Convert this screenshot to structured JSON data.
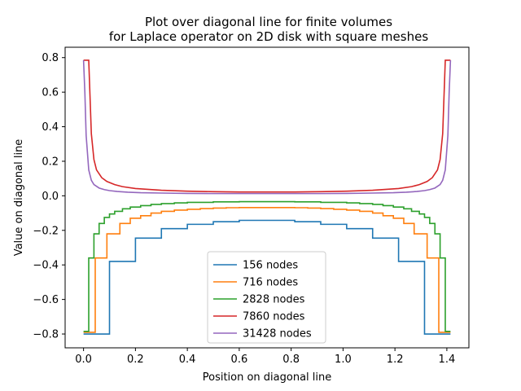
{
  "chart_data": {
    "type": "line",
    "title": [
      "Plot over diagonal line for finite volumes",
      "for Laplace operator on 2D disk with square meshes"
    ],
    "xlabel": "Position on diagonal line",
    "ylabel": "Value on diagonal line",
    "xlim": [
      -0.071,
      1.485
    ],
    "ylim": [
      -0.88,
      0.86
    ],
    "xticks": [
      0.0,
      0.2,
      0.4,
      0.6,
      0.8,
      1.0,
      1.2,
      1.4
    ],
    "xtick_labels": [
      "0.0",
      "0.2",
      "0.4",
      "0.6",
      "0.8",
      "1.0",
      "1.2",
      "1.4"
    ],
    "yticks": [
      -0.8,
      -0.6,
      -0.4,
      -0.2,
      0.0,
      0.2,
      0.4,
      0.6,
      0.8
    ],
    "ytick_labels": [
      "−0.8",
      "−0.6",
      "−0.4",
      "−0.2",
      "0.0",
      "0.2",
      "0.4",
      "0.6",
      "0.8"
    ],
    "grid": false,
    "legend_position": "lower-center",
    "series": [
      {
        "name": "156 nodes",
        "color": "#1f77b4",
        "x": [
          0,
          0.1,
          0.1,
          0.2,
          0.2,
          0.3,
          0.3,
          0.4,
          0.4,
          0.5,
          0.5,
          0.6,
          0.6,
          0.707,
          0.814,
          0.814,
          0.914,
          0.914,
          1.014,
          1.014,
          1.114,
          1.114,
          1.214,
          1.214,
          1.314,
          1.314,
          1.414
        ],
        "y": [
          -0.8,
          -0.8,
          -0.38,
          -0.38,
          -0.245,
          -0.245,
          -0.19,
          -0.19,
          -0.165,
          -0.165,
          -0.15,
          -0.15,
          -0.142,
          -0.142,
          -0.142,
          -0.15,
          -0.15,
          -0.165,
          -0.165,
          -0.19,
          -0.19,
          -0.245,
          -0.245,
          -0.38,
          -0.38,
          -0.8,
          -0.8
        ]
      },
      {
        "name": "716 nodes",
        "color": "#ff7f0e",
        "x": [
          0,
          0.045,
          0.045,
          0.09,
          0.09,
          0.14,
          0.14,
          0.18,
          0.18,
          0.22,
          0.22,
          0.26,
          0.26,
          0.3,
          0.3,
          0.35,
          0.35,
          0.4,
          0.4,
          0.45,
          0.45,
          0.5,
          0.5,
          0.55,
          0.55,
          0.6,
          0.6,
          0.707,
          0.814,
          0.814,
          0.864,
          0.864,
          0.914,
          0.914,
          0.964,
          0.964,
          1.014,
          1.014,
          1.064,
          1.064,
          1.114,
          1.114,
          1.154,
          1.154,
          1.194,
          1.194,
          1.234,
          1.234,
          1.274,
          1.274,
          1.324,
          1.324,
          1.369,
          1.369,
          1.414
        ],
        "y": [
          -0.79,
          -0.79,
          -0.36,
          -0.36,
          -0.22,
          -0.22,
          -0.16,
          -0.16,
          -0.13,
          -0.13,
          -0.115,
          -0.115,
          -0.1,
          -0.1,
          -0.09,
          -0.09,
          -0.083,
          -0.083,
          -0.078,
          -0.078,
          -0.074,
          -0.074,
          -0.071,
          -0.071,
          -0.069,
          -0.069,
          -0.068,
          -0.068,
          -0.068,
          -0.069,
          -0.069,
          -0.071,
          -0.071,
          -0.074,
          -0.074,
          -0.078,
          -0.078,
          -0.083,
          -0.083,
          -0.09,
          -0.09,
          -0.1,
          -0.1,
          -0.115,
          -0.115,
          -0.13,
          -0.13,
          -0.16,
          -0.16,
          -0.22,
          -0.22,
          -0.36,
          -0.36,
          -0.79,
          -0.79
        ]
      },
      {
        "name": "2828 nodes",
        "color": "#2ca02c",
        "x": [
          0,
          0.02,
          0.02,
          0.04,
          0.04,
          0.06,
          0.06,
          0.08,
          0.08,
          0.1,
          0.1,
          0.12,
          0.12,
          0.15,
          0.15,
          0.18,
          0.18,
          0.22,
          0.22,
          0.26,
          0.26,
          0.3,
          0.3,
          0.35,
          0.35,
          0.4,
          0.4,
          0.5,
          0.5,
          0.6,
          0.6,
          0.707,
          0.814,
          0.814,
          0.914,
          0.914,
          1.014,
          1.014,
          1.064,
          1.064,
          1.114,
          1.114,
          1.154,
          1.154,
          1.194,
          1.194,
          1.234,
          1.234,
          1.264,
          1.264,
          1.294,
          1.294,
          1.314,
          1.314,
          1.334,
          1.334,
          1.354,
          1.354,
          1.374,
          1.374,
          1.394,
          1.394,
          1.414
        ],
        "y": [
          -0.785,
          -0.785,
          -0.36,
          -0.36,
          -0.22,
          -0.22,
          -0.16,
          -0.16,
          -0.125,
          -0.125,
          -0.105,
          -0.105,
          -0.09,
          -0.09,
          -0.075,
          -0.075,
          -0.065,
          -0.065,
          -0.057,
          -0.057,
          -0.05,
          -0.05,
          -0.045,
          -0.045,
          -0.041,
          -0.041,
          -0.038,
          -0.038,
          -0.035,
          -0.035,
          -0.034,
          -0.034,
          -0.034,
          -0.035,
          -0.035,
          -0.038,
          -0.038,
          -0.041,
          -0.041,
          -0.045,
          -0.045,
          -0.05,
          -0.05,
          -0.057,
          -0.057,
          -0.065,
          -0.065,
          -0.075,
          -0.075,
          -0.09,
          -0.09,
          -0.105,
          -0.105,
          -0.125,
          -0.125,
          -0.16,
          -0.16,
          -0.22,
          -0.22,
          -0.36,
          -0.36,
          -0.785,
          -0.785
        ]
      },
      {
        "name": "7860 nodes",
        "color": "#d62728",
        "x": [
          0,
          0.01,
          0.02,
          0.03,
          0.04,
          0.05,
          0.07,
          0.09,
          0.12,
          0.15,
          0.2,
          0.3,
          0.4,
          0.5,
          0.6,
          0.707,
          0.814,
          0.914,
          1.014,
          1.114,
          1.214,
          1.264,
          1.294,
          1.324,
          1.344,
          1.364,
          1.374,
          1.384,
          1.394,
          1.404,
          1.414
        ],
        "y": [
          0.785,
          0.785,
          0.785,
          0.36,
          0.21,
          0.15,
          0.105,
          0.083,
          0.065,
          0.053,
          0.042,
          0.032,
          0.027,
          0.024,
          0.022,
          0.022,
          0.022,
          0.024,
          0.027,
          0.032,
          0.042,
          0.053,
          0.065,
          0.083,
          0.105,
          0.15,
          0.21,
          0.36,
          0.785,
          0.785,
          0.785
        ]
      },
      {
        "name": "31428 nodes",
        "color": "#9467bd",
        "x": [
          0,
          0.005,
          0.01,
          0.02,
          0.03,
          0.04,
          0.06,
          0.08,
          0.1,
          0.13,
          0.17,
          0.22,
          0.3,
          0.4,
          0.5,
          0.6,
          0.707,
          0.814,
          0.914,
          1.014,
          1.114,
          1.194,
          1.244,
          1.284,
          1.314,
          1.334,
          1.354,
          1.374,
          1.384,
          1.394,
          1.404,
          1.409,
          1.414
        ],
        "y": [
          0.785,
          0.6,
          0.35,
          0.15,
          0.09,
          0.065,
          0.045,
          0.036,
          0.03,
          0.025,
          0.021,
          0.018,
          0.016,
          0.014,
          0.013,
          0.013,
          0.013,
          0.013,
          0.013,
          0.014,
          0.016,
          0.018,
          0.021,
          0.025,
          0.03,
          0.036,
          0.045,
          0.065,
          0.09,
          0.15,
          0.35,
          0.6,
          0.785
        ]
      }
    ]
  }
}
